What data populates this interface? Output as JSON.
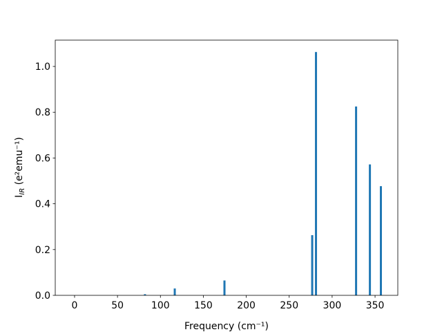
{
  "chart_data": {
    "type": "bar",
    "x": [
      82,
      116.7,
      174.6,
      276.8,
      281.2,
      327.9,
      344,
      356.8
    ],
    "values": [
      0.005,
      0.03,
      0.065,
      0.263,
      1.063,
      0.825,
      0.572,
      0.477
    ],
    "color": "#1f77b4",
    "xlim": [
      -22.5,
      376.5
    ],
    "xticks": [
      0,
      50,
      100,
      150,
      200,
      250,
      300,
      350
    ],
    "ylim": [
      0,
      1.115
    ],
    "yticks": [
      {
        "value": 0,
        "label": "0.0"
      },
      {
        "value": 0.2,
        "label": "0.2"
      },
      {
        "value": 0.4,
        "label": "0.4"
      },
      {
        "value": 0.6,
        "label": "0.6"
      },
      {
        "value": 0.8,
        "label": "0.8"
      },
      {
        "value": 1,
        "label": "1.0"
      }
    ],
    "xlabel": "Frequency (cm⁻¹)",
    "ylabel": {
      "main": "I",
      "sub": "IR",
      "rest": " (e²emu⁻¹)"
    }
  }
}
